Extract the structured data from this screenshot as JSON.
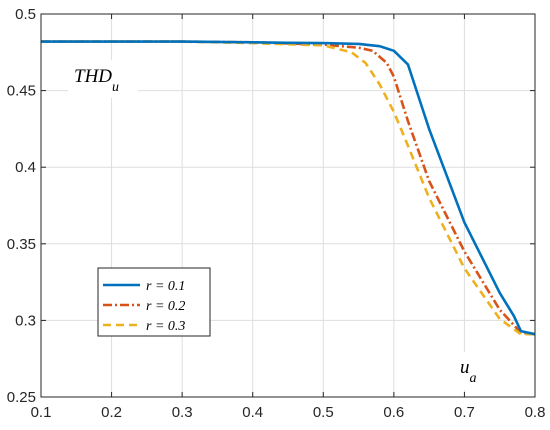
{
  "chart_data": {
    "type": "line",
    "title": "",
    "ylabel": "THD_u",
    "xlabel": "u_a",
    "xlim": [
      0.1,
      0.8
    ],
    "ylim": [
      0.25,
      0.5
    ],
    "xticks": [
      "0.1",
      "0.2",
      "0.3",
      "0.4",
      "0.5",
      "0.6",
      "0.7",
      "0.8"
    ],
    "yticks": [
      "0.25",
      "0.3",
      "0.35",
      "0.4",
      "0.45",
      "0.5"
    ],
    "grid": true,
    "legend_position": "bottom-left",
    "series": [
      {
        "name": "r = 0.1",
        "color": "#0072BD",
        "dash": "solid",
        "x": [
          0.1,
          0.2,
          0.3,
          0.4,
          0.45,
          0.5,
          0.55,
          0.58,
          0.6,
          0.62,
          0.65,
          0.7,
          0.75,
          0.77,
          0.78,
          0.8
        ],
        "y": [
          0.482,
          0.482,
          0.482,
          0.4815,
          0.4812,
          0.481,
          0.4805,
          0.479,
          0.476,
          0.467,
          0.425,
          0.364,
          0.318,
          0.303,
          0.293,
          0.291
        ]
      },
      {
        "name": "r = 0.2",
        "color": "#D95319",
        "dash": "dashdot",
        "x": [
          0.1,
          0.2,
          0.3,
          0.4,
          0.5,
          0.55,
          0.57,
          0.59,
          0.6,
          0.62,
          0.65,
          0.7,
          0.75,
          0.78,
          0.8
        ],
        "y": [
          0.482,
          0.482,
          0.482,
          0.4815,
          0.48,
          0.478,
          0.476,
          0.468,
          0.459,
          0.43,
          0.391,
          0.345,
          0.307,
          0.292,
          0.291
        ]
      },
      {
        "name": "r = 0.3",
        "color": "#EDB120",
        "dash": "dash",
        "x": [
          0.1,
          0.2,
          0.3,
          0.4,
          0.5,
          0.54,
          0.56,
          0.58,
          0.6,
          0.62,
          0.65,
          0.7,
          0.75,
          0.78,
          0.8
        ],
        "y": [
          0.482,
          0.482,
          0.482,
          0.481,
          0.4795,
          0.475,
          0.468,
          0.454,
          0.436,
          0.414,
          0.38,
          0.334,
          0.301,
          0.291,
          0.291
        ]
      }
    ]
  }
}
